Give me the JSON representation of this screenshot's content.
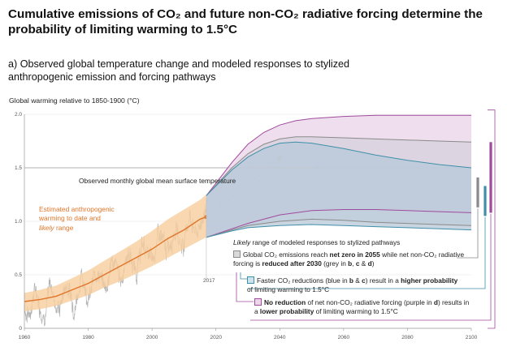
{
  "title": "Cumulative emissions of CO₂ and future non-CO₂ radiative forcing determine the probability of limiting warming to 1.5°C",
  "subtitle": "a) Observed global temperature change and modeled responses to stylized anthropogenic emission and forcing pathways",
  "chart_data": {
    "type": "line",
    "ylabel": "Global warming relative to 1850-1900 (°C)",
    "xlim": [
      1960,
      2100
    ],
    "ylim": [
      0,
      2.0
    ],
    "x_ticks": [
      "1960",
      "1980",
      "2000",
      "2020",
      "2040",
      "2060",
      "2080",
      "2100"
    ],
    "y_ticks": [
      "0",
      "0.5",
      "1.0",
      "1.5",
      "2.0"
    ],
    "reference_line": 1.5,
    "marker_year_label": "2017",
    "annotations": {
      "observed": "Observed monthly global mean surface temperature",
      "estimated_line1": "Estimated anthropogenic",
      "estimated_line2": "warming to date and",
      "estimated_likely": "likely",
      "estimated_range": " range"
    },
    "estimated_warming": {
      "x": [
        1960,
        1965,
        1970,
        1975,
        1980,
        1985,
        1990,
        1995,
        2000,
        2005,
        2010,
        2015,
        2017
      ],
      "y": [
        0.25,
        0.27,
        0.3,
        0.36,
        0.42,
        0.5,
        0.58,
        0.66,
        0.74,
        0.84,
        0.92,
        1.02,
        1.04
      ],
      "lower": [
        0.16,
        0.18,
        0.21,
        0.26,
        0.31,
        0.38,
        0.44,
        0.51,
        0.58,
        0.66,
        0.74,
        0.82,
        0.85
      ],
      "upper": [
        0.33,
        0.36,
        0.4,
        0.47,
        0.54,
        0.63,
        0.72,
        0.81,
        0.91,
        1.02,
        1.11,
        1.2,
        1.25
      ]
    },
    "extrapolation": {
      "x": [
        2017,
        2040
      ],
      "y": [
        1.04,
        1.59
      ]
    },
    "likely_range_2040": {
      "x": [
        2030,
        2052
      ],
      "y": 1.5
    },
    "ranges": {
      "purple_upper": {
        "x": [
          2017,
          2025,
          2030,
          2035,
          2040,
          2045,
          2050,
          2060,
          2070,
          2080,
          2090,
          2100
        ],
        "y": [
          1.24,
          1.55,
          1.72,
          1.83,
          1.9,
          1.94,
          1.96,
          1.98,
          1.99,
          1.99,
          1.99,
          1.99
        ]
      },
      "purple_lower": {
        "x": [
          2017,
          2025,
          2030,
          2040,
          2050,
          2060,
          2070,
          2080,
          2090,
          2100
        ],
        "y": [
          0.85,
          0.93,
          0.98,
          1.06,
          1.1,
          1.11,
          1.11,
          1.1,
          1.09,
          1.08
        ]
      },
      "grey_upper": {
        "x": [
          2017,
          2025,
          2030,
          2035,
          2040,
          2045,
          2050,
          2060,
          2070,
          2080,
          2090,
          2100
        ],
        "y": [
          1.24,
          1.5,
          1.63,
          1.72,
          1.77,
          1.79,
          1.79,
          1.78,
          1.77,
          1.76,
          1.75,
          1.74
        ]
      },
      "grey_lower": {
        "x": [
          2017,
          2025,
          2030,
          2040,
          2050,
          2060,
          2070,
          2080,
          2090,
          2100
        ],
        "y": [
          0.85,
          0.92,
          0.96,
          1.0,
          1.02,
          1.01,
          0.99,
          0.98,
          0.97,
          0.96
        ]
      },
      "blue_upper": {
        "x": [
          2017,
          2025,
          2030,
          2035,
          2040,
          2045,
          2050,
          2060,
          2070,
          2080,
          2090,
          2100
        ],
        "y": [
          1.24,
          1.48,
          1.6,
          1.68,
          1.73,
          1.74,
          1.73,
          1.68,
          1.62,
          1.57,
          1.53,
          1.5
        ]
      },
      "blue_lower": {
        "x": [
          2017,
          2025,
          2030,
          2040,
          2050,
          2060,
          2070,
          2080,
          2090,
          2100
        ],
        "y": [
          0.85,
          0.91,
          0.94,
          0.96,
          0.97,
          0.96,
          0.95,
          0.94,
          0.93,
          0.92
        ]
      }
    },
    "right_bars": [
      {
        "color": "purple",
        "range": [
          1.08,
          1.74
        ]
      },
      {
        "color": "grey",
        "range": [
          1.13,
          1.41
        ]
      },
      {
        "color": "blue",
        "range": [
          1.05,
          1.33
        ]
      }
    ],
    "colors": {
      "observed": "#b4b4b4",
      "estimated": "#e0762a",
      "estimated_band": "#f7cd9c",
      "purple": "#a04a9c",
      "grey": "#8a8a8a",
      "blue": "#3f8fa8",
      "blue_fill": "#b7c8d8",
      "purple_fill": "#ead4e8"
    }
  },
  "legend": {
    "heading_likely": "Likely",
    "heading_rest": " range of modeled responses to stylized pathways",
    "item1_a": "Global CO₂ emissions reach ",
    "item1_b": "net zero in 2055",
    "item1_c": " while net non-CO₂ radiative forcing is ",
    "item1_d": "reduced after 2030",
    "item1_e": " (grey in ",
    "item1_f": "b",
    "item1_g": ", ",
    "item1_h": "c",
    "item1_i": " & ",
    "item1_j": "d",
    "item1_k": ")",
    "item2_a": "Faster CO₂ reductions (blue in ",
    "item2_b": "b",
    "item2_c": " & ",
    "item2_d": "c",
    "item2_e": ") result in a ",
    "item2_f": "higher probability",
    "item2_g": " of limiting warming to 1.5°C",
    "item3_a": "No reduction",
    "item3_b": " of net non-CO₂ radiative forcing (purple in ",
    "item3_c": "d",
    "item3_d": ") results in a ",
    "item3_e": "lower probability",
    "item3_f": " of limiting warming to 1.5°C"
  }
}
